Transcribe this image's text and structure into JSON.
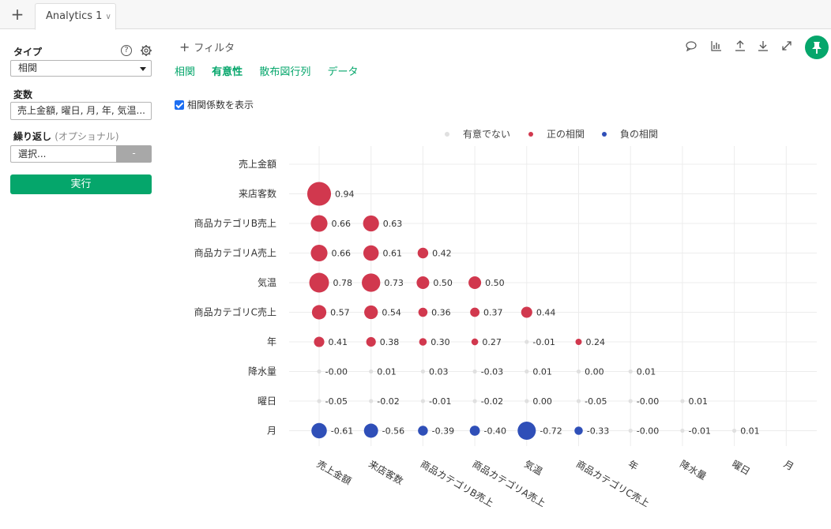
{
  "tabs": {
    "add_label": "+",
    "active": "Analytics 1"
  },
  "sidebar": {
    "type_label": "タイプ",
    "type_value": "相関",
    "variables_label": "変数",
    "variables_value": "売上金額, 曜日, 月, 年, 気温...",
    "repeat_label": "繰り返し",
    "repeat_optional": "(オプショナル)",
    "repeat_placeholder": "選択...",
    "repeat_button": "-",
    "run_label": "実行"
  },
  "main": {
    "filter_label": "フィルタ",
    "subtabs": [
      "相関",
      "有意性",
      "散布図行列",
      "データ"
    ],
    "active_subtab": "有意性",
    "show_coef_label": "相関係数を表示",
    "show_coef_checked": true
  },
  "colors": {
    "accent": "#05a66b",
    "positive": "#d1384e",
    "negative": "#2f4fb8",
    "insignificant": "#e0e0e0"
  },
  "chart_data": {
    "type": "scatter",
    "variables": [
      "売上金額",
      "来店客数",
      "商品カテゴリB売上",
      "商品カテゴリA売上",
      "気温",
      "商品カテゴリC売上",
      "年",
      "降水量",
      "曜日",
      "月"
    ],
    "legend": [
      "有意でない",
      "正の相関",
      "負の相関"
    ],
    "legend_placement": "top",
    "cells": [
      {
        "row": "来店客数",
        "col": "売上金額",
        "value": 0.94,
        "label": "0.94",
        "sig": "pos"
      },
      {
        "row": "商品カテゴリB売上",
        "col": "売上金額",
        "value": 0.66,
        "label": "0.66",
        "sig": "pos"
      },
      {
        "row": "商品カテゴリB売上",
        "col": "来店客数",
        "value": 0.63,
        "label": "0.63",
        "sig": "pos"
      },
      {
        "row": "商品カテゴリA売上",
        "col": "売上金額",
        "value": 0.66,
        "label": "0.66",
        "sig": "pos"
      },
      {
        "row": "商品カテゴリA売上",
        "col": "来店客数",
        "value": 0.61,
        "label": "0.61",
        "sig": "pos"
      },
      {
        "row": "商品カテゴリA売上",
        "col": "商品カテゴリB売上",
        "value": 0.42,
        "label": "0.42",
        "sig": "pos"
      },
      {
        "row": "気温",
        "col": "売上金額",
        "value": 0.78,
        "label": "0.78",
        "sig": "pos"
      },
      {
        "row": "気温",
        "col": "来店客数",
        "value": 0.73,
        "label": "0.73",
        "sig": "pos"
      },
      {
        "row": "気温",
        "col": "商品カテゴリB売上",
        "value": 0.5,
        "label": "0.50",
        "sig": "pos"
      },
      {
        "row": "気温",
        "col": "商品カテゴリA売上",
        "value": 0.5,
        "label": "0.50",
        "sig": "pos"
      },
      {
        "row": "商品カテゴリC売上",
        "col": "売上金額",
        "value": 0.57,
        "label": "0.57",
        "sig": "pos"
      },
      {
        "row": "商品カテゴリC売上",
        "col": "来店客数",
        "value": 0.54,
        "label": "0.54",
        "sig": "pos"
      },
      {
        "row": "商品カテゴリC売上",
        "col": "商品カテゴリB売上",
        "value": 0.36,
        "label": "0.36",
        "sig": "pos"
      },
      {
        "row": "商品カテゴリC売上",
        "col": "商品カテゴリA売上",
        "value": 0.37,
        "label": "0.37",
        "sig": "pos"
      },
      {
        "row": "商品カテゴリC売上",
        "col": "気温",
        "value": 0.44,
        "label": "0.44",
        "sig": "pos"
      },
      {
        "row": "年",
        "col": "売上金額",
        "value": 0.41,
        "label": "0.41",
        "sig": "pos"
      },
      {
        "row": "年",
        "col": "来店客数",
        "value": 0.38,
        "label": "0.38",
        "sig": "pos"
      },
      {
        "row": "年",
        "col": "商品カテゴリB売上",
        "value": 0.3,
        "label": "0.30",
        "sig": "pos"
      },
      {
        "row": "年",
        "col": "商品カテゴリA売上",
        "value": 0.27,
        "label": "0.27",
        "sig": "pos"
      },
      {
        "row": "年",
        "col": "気温",
        "value": -0.01,
        "label": "-0.01",
        "sig": "none"
      },
      {
        "row": "年",
        "col": "商品カテゴリC売上",
        "value": 0.24,
        "label": "0.24",
        "sig": "pos"
      },
      {
        "row": "降水量",
        "col": "売上金額",
        "value": -0.0,
        "label": "-0.00",
        "sig": "none"
      },
      {
        "row": "降水量",
        "col": "来店客数",
        "value": 0.01,
        "label": "0.01",
        "sig": "none"
      },
      {
        "row": "降水量",
        "col": "商品カテゴリB売上",
        "value": 0.03,
        "label": "0.03",
        "sig": "none"
      },
      {
        "row": "降水量",
        "col": "商品カテゴリA売上",
        "value": -0.03,
        "label": "-0.03",
        "sig": "none"
      },
      {
        "row": "降水量",
        "col": "気温",
        "value": 0.01,
        "label": "0.01",
        "sig": "none"
      },
      {
        "row": "降水量",
        "col": "商品カテゴリC売上",
        "value": 0.0,
        "label": "0.00",
        "sig": "none"
      },
      {
        "row": "降水量",
        "col": "年",
        "value": 0.01,
        "label": "0.01",
        "sig": "none"
      },
      {
        "row": "曜日",
        "col": "売上金額",
        "value": -0.05,
        "label": "-0.05",
        "sig": "none"
      },
      {
        "row": "曜日",
        "col": "来店客数",
        "value": -0.02,
        "label": "-0.02",
        "sig": "none"
      },
      {
        "row": "曜日",
        "col": "商品カテゴリB売上",
        "value": -0.01,
        "label": "-0.01",
        "sig": "none"
      },
      {
        "row": "曜日",
        "col": "商品カテゴリA売上",
        "value": -0.02,
        "label": "-0.02",
        "sig": "none"
      },
      {
        "row": "曜日",
        "col": "気温",
        "value": 0.0,
        "label": "0.00",
        "sig": "none"
      },
      {
        "row": "曜日",
        "col": "商品カテゴリC売上",
        "value": -0.05,
        "label": "-0.05",
        "sig": "none"
      },
      {
        "row": "曜日",
        "col": "年",
        "value": -0.0,
        "label": "-0.00",
        "sig": "none"
      },
      {
        "row": "曜日",
        "col": "降水量",
        "value": 0.01,
        "label": "0.01",
        "sig": "none"
      },
      {
        "row": "月",
        "col": "売上金額",
        "value": -0.61,
        "label": "-0.61",
        "sig": "neg"
      },
      {
        "row": "月",
        "col": "来店客数",
        "value": -0.56,
        "label": "-0.56",
        "sig": "neg"
      },
      {
        "row": "月",
        "col": "商品カテゴリB売上",
        "value": -0.39,
        "label": "-0.39",
        "sig": "neg"
      },
      {
        "row": "月",
        "col": "商品カテゴリA売上",
        "value": -0.4,
        "label": "-0.40",
        "sig": "neg"
      },
      {
        "row": "月",
        "col": "気温",
        "value": -0.72,
        "label": "-0.72",
        "sig": "neg"
      },
      {
        "row": "月",
        "col": "商品カテゴリC売上",
        "value": -0.33,
        "label": "-0.33",
        "sig": "neg"
      },
      {
        "row": "月",
        "col": "年",
        "value": -0.0,
        "label": "-0.00",
        "sig": "none"
      },
      {
        "row": "月",
        "col": "降水量",
        "value": -0.01,
        "label": "-0.01",
        "sig": "none"
      },
      {
        "row": "月",
        "col": "曜日",
        "value": 0.01,
        "label": "0.01",
        "sig": "none"
      }
    ]
  }
}
